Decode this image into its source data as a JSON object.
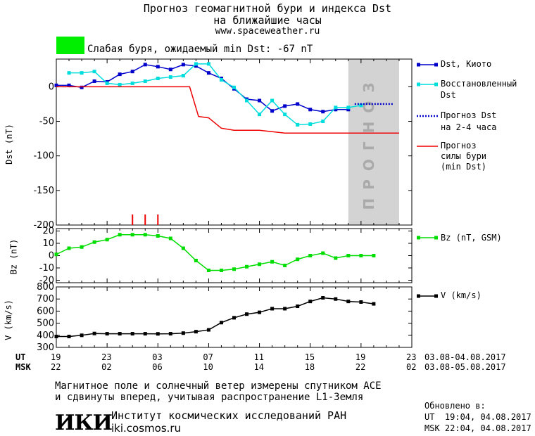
{
  "header": {
    "title_line1": "Прогноз геомагнитной бури и индекса Dst",
    "title_line2": "на ближайшие часы",
    "site": "www.spaceweather.ru",
    "status_color": "#00ee00",
    "status_text": "Слабая буря, ожидаемый min Dst: -67 nT"
  },
  "time_axis": {
    "ut_label": "UT",
    "msk_label": "MSK",
    "ut_ticks": [
      "19",
      "23",
      "03",
      "07",
      "11",
      "15",
      "19",
      "23"
    ],
    "msk_ticks": [
      "22",
      "02",
      "06",
      "10",
      "14",
      "18",
      "22",
      "02"
    ],
    "ut_range": "03.08-04.08.2017",
    "msk_range": "03.08-05.08.2017"
  },
  "chart_data": [
    {
      "type": "line",
      "ylabel": "Dst (nT)",
      "ylim": [
        -200,
        40
      ],
      "yticks": [
        0,
        -50,
        -100,
        -150,
        -200
      ],
      "xlim": [
        0,
        28
      ],
      "forecast_band": {
        "x_start": 23,
        "x_end": 27,
        "label": "ПРОГНОЗ",
        "color": "#d3d3d3"
      },
      "storm_markers_x": [
        6,
        7,
        8
      ],
      "series": [
        {
          "name": "Dst, Киото",
          "color": "#0000cc",
          "style": "solid-square",
          "x": [
            0,
            1,
            2,
            3,
            4,
            5,
            6,
            7,
            8,
            9,
            10,
            11,
            12,
            13,
            14,
            15,
            16,
            17,
            18,
            19,
            20,
            21,
            22,
            23
          ],
          "y": [
            2,
            2,
            -1,
            8,
            7,
            18,
            22,
            32,
            29,
            25,
            32,
            30,
            20,
            12,
            -3,
            -18,
            -20,
            -35,
            -28,
            -25,
            -33,
            -36,
            -33,
            -33
          ]
        },
        {
          "name": "Восстановленный Dst",
          "color": "#00dddd",
          "style": "solid-square",
          "x": [
            1,
            2,
            3,
            4,
            5,
            6,
            7,
            8,
            9,
            10,
            11,
            12,
            13,
            14,
            15,
            16,
            17,
            18,
            19,
            20,
            21,
            22,
            23,
            24
          ],
          "y": [
            20,
            20,
            22,
            5,
            3,
            5,
            8,
            12,
            14,
            16,
            33,
            33,
            10,
            -1,
            -20,
            -40,
            -20,
            -40,
            -55,
            -54,
            -50,
            -30,
            -30,
            -27
          ]
        },
        {
          "name": "Прогноз Dst на 2-4 часа",
          "color": "#0000cc",
          "style": "dotted",
          "x": [
            23.5,
            24.5,
            25.5,
            26.5
          ],
          "y": [
            -25,
            -25,
            -25,
            -25
          ]
        },
        {
          "name": "Прогноз силы бури (min Dst)",
          "color": "#ee0000",
          "style": "step",
          "x": [
            0,
            10.5,
            11.2,
            12,
            13,
            14,
            15,
            16,
            17,
            18,
            19,
            27
          ],
          "y": [
            0,
            0,
            -43,
            -45,
            -60,
            -63,
            -63,
            -63,
            -65,
            -67,
            -67,
            -67
          ]
        }
      ]
    },
    {
      "type": "line",
      "ylabel": "Bz (nT)",
      "ylim": [
        -22,
        22
      ],
      "yticks": [
        20,
        10,
        0,
        -10,
        -20
      ],
      "series": [
        {
          "name": "Bz (nT, GSM)",
          "color": "#00dd00",
          "x": [
            0,
            1,
            2,
            3,
            4,
            5,
            6,
            7,
            8,
            9,
            10,
            11,
            12,
            13,
            14,
            15,
            16,
            17,
            18,
            19,
            20,
            21,
            22,
            23,
            24,
            25
          ],
          "y": [
            1,
            6,
            7,
            11,
            13,
            17,
            17,
            17,
            16,
            14,
            6,
            -4,
            -12,
            -12,
            -11,
            -9,
            -7,
            -5,
            -8,
            -3,
            0,
            2,
            -2,
            0,
            0,
            0
          ]
        }
      ]
    },
    {
      "type": "line",
      "ylabel": "V (km/s)",
      "ylim": [
        300,
        800
      ],
      "yticks": [
        800,
        700,
        600,
        500,
        400,
        300
      ],
      "series": [
        {
          "name": "V (km/s)",
          "color": "#000000",
          "x": [
            0,
            1,
            2,
            3,
            4,
            5,
            6,
            7,
            8,
            9,
            10,
            11,
            12,
            13,
            14,
            15,
            16,
            17,
            18,
            19,
            20,
            21,
            22,
            23,
            24,
            25
          ],
          "y": [
            390,
            390,
            400,
            415,
            413,
            413,
            413,
            413,
            412,
            413,
            418,
            430,
            445,
            505,
            545,
            575,
            590,
            620,
            620,
            640,
            680,
            710,
            700,
            680,
            675,
            660
          ]
        }
      ]
    }
  ],
  "legend": {
    "dst_kyoto": "Dst, Киото",
    "restored_1": "Восстановленный",
    "restored_2": "Dst",
    "fc_dst_1": "Прогноз Dst",
    "fc_dst_2": "на 2-4 часа",
    "fc_storm_1": "Прогноз",
    "fc_storm_2": "силы бури",
    "fc_storm_3": "(min Dst)",
    "bz": "Bz (nT, GSM)",
    "v": "V (km/s)"
  },
  "footer": {
    "note_line1": "Магнитное поле и солнечный ветер измерены спутником ACE",
    "note_line2": "и сдвинуты вперед, учитывая распространение L1-Земля",
    "logo": "ИКИ",
    "institute": "Институт космических исследований РАН",
    "institute_site": "iki.cosmos.ru",
    "updated_label": "Обновлено в:",
    "updated_ut": "UT  19:04, 04.08.2017",
    "updated_msk": "MSK 22:04, 04.08.2017"
  }
}
